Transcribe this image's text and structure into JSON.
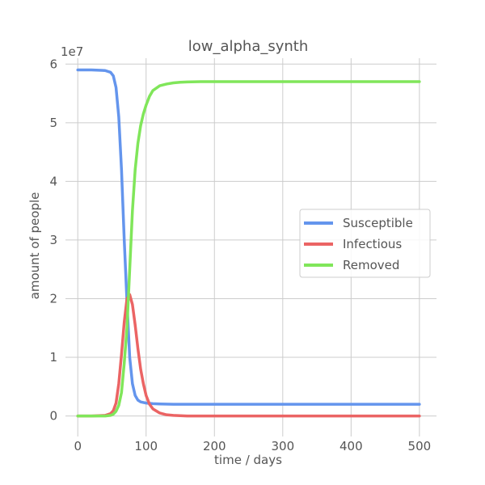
{
  "chart_data": {
    "type": "line",
    "title": "low_alpha_synth",
    "xlabel": "time / days",
    "ylabel": "amount of people",
    "offset_label": "1e7",
    "xlim": [
      -18,
      525
    ],
    "ylim": [
      -0.35,
      6.1
    ],
    "y_scale_factor": 10000000,
    "x_ticks": [
      0,
      100,
      200,
      300,
      400,
      500
    ],
    "y_ticks": [
      0,
      1,
      2,
      3,
      4,
      5,
      6
    ],
    "grid": true,
    "legend_position": "right",
    "series": [
      {
        "name": "Susceptible",
        "color": "#6495ED",
        "x": [
          0,
          20,
          40,
          48,
          52,
          56,
          60,
          64,
          68,
          72,
          76,
          80,
          84,
          88,
          92,
          96,
          100,
          110,
          120,
          140,
          200,
          300,
          400,
          500
        ],
        "y": [
          5.9,
          5.9,
          5.89,
          5.86,
          5.8,
          5.6,
          5.1,
          4.2,
          3.0,
          1.95,
          1.0,
          0.55,
          0.35,
          0.27,
          0.24,
          0.23,
          0.22,
          0.21,
          0.205,
          0.2,
          0.2,
          0.2,
          0.2,
          0.2
        ]
      },
      {
        "name": "Infectious",
        "color": "#EB6464",
        "x": [
          0,
          20,
          40,
          48,
          52,
          56,
          60,
          64,
          68,
          72,
          76,
          80,
          84,
          88,
          92,
          96,
          100,
          105,
          110,
          120,
          130,
          140,
          160,
          200,
          300,
          400,
          500
        ],
        "y": [
          0,
          0,
          0.01,
          0.04,
          0.09,
          0.22,
          0.55,
          1.05,
          1.6,
          2.0,
          2.07,
          1.9,
          1.55,
          1.15,
          0.8,
          0.55,
          0.35,
          0.2,
          0.12,
          0.05,
          0.02,
          0.01,
          0,
          0,
          0,
          0,
          0
        ]
      },
      {
        "name": "Removed",
        "color": "#80E65A",
        "x": [
          0,
          20,
          40,
          48,
          52,
          56,
          60,
          64,
          68,
          72,
          76,
          80,
          84,
          88,
          92,
          96,
          100,
          105,
          110,
          120,
          130,
          140,
          150,
          160,
          180,
          200,
          300,
          400,
          500
        ],
        "y": [
          0,
          0,
          0,
          0.01,
          0.03,
          0.08,
          0.18,
          0.4,
          0.9,
          1.5,
          2.5,
          3.5,
          4.2,
          4.65,
          4.95,
          5.15,
          5.3,
          5.45,
          5.55,
          5.63,
          5.66,
          5.68,
          5.69,
          5.695,
          5.7,
          5.7,
          5.7,
          5.7,
          5.7
        ]
      }
    ]
  }
}
